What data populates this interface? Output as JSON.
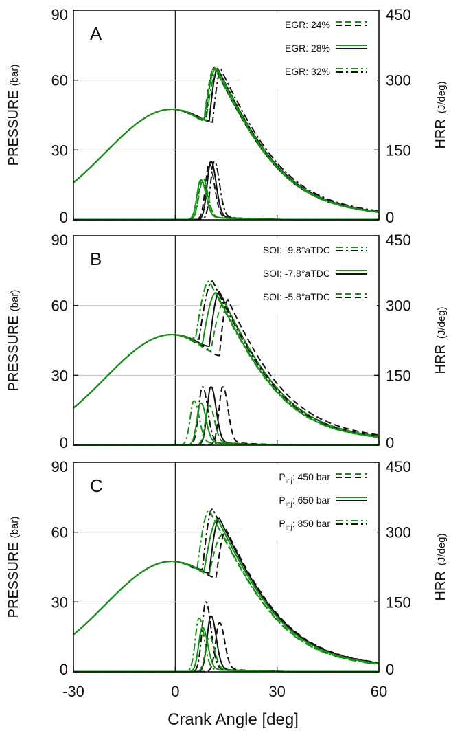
{
  "colors": {
    "green": "#159015",
    "black": "#111111",
    "grid": "#c8c8c8",
    "frame": "#111111"
  },
  "chart_data": [
    {
      "type": "line",
      "panel_label": "A",
      "xlim": [
        -30,
        60
      ],
      "ylim_left": [
        0,
        90
      ],
      "ylim_right": [
        0,
        450
      ],
      "x_ticks": [
        "-30",
        "0",
        "30",
        "60"
      ],
      "y_ticks_left": [
        "0",
        "30",
        "60",
        "90"
      ],
      "y_ticks_right": [
        "0",
        "150",
        "300",
        "450"
      ],
      "ylabel_left": "PRESSURE (bar)",
      "ylabel_right": "HRR (J/deg)",
      "grid": true,
      "legend_position": "top-right",
      "legend": [
        {
          "label": "EGR: 24%",
          "style": "dashed"
        },
        {
          "label": "EGR: 28%",
          "style": "solid"
        },
        {
          "label": "EGR: 32%",
          "style": "dashdot"
        }
      ],
      "series": [
        {
          "name": "EGR: 24%",
          "color": "green",
          "style": "dashed",
          "pressure_peak": {
            "x": 11.5,
            "y": 65.5
          },
          "pressure_dip": {
            "x": 8.5,
            "y": 43.5
          },
          "hrr_peak": {
            "x": 8.0,
            "y": 90
          }
        },
        {
          "name": "EGR: 24%",
          "color": "black",
          "style": "dashed",
          "pressure_peak": {
            "x": 11.5,
            "y": 65.5
          },
          "pressure_dip": {
            "x": 9.0,
            "y": 43.0
          },
          "hrr_peak": {
            "x": 10.0,
            "y": 120
          }
        },
        {
          "name": "EGR: 28%",
          "color": "green",
          "style": "solid",
          "pressure_peak": {
            "x": 12.0,
            "y": 65.0
          },
          "pressure_dip": {
            "x": 8.5,
            "y": 43.0
          },
          "hrr_peak": {
            "x": 7.5,
            "y": 85
          }
        },
        {
          "name": "EGR: 28%",
          "color": "black",
          "style": "solid",
          "pressure_peak": {
            "x": 12.5,
            "y": 65.0
          },
          "pressure_dip": {
            "x": 10.0,
            "y": 42.5
          },
          "hrr_peak": {
            "x": 10.5,
            "y": 125
          }
        },
        {
          "name": "EGR: 32%",
          "color": "green",
          "style": "dashdot",
          "pressure_peak": {
            "x": 12.5,
            "y": 64.5
          },
          "pressure_dip": {
            "x": 9.0,
            "y": 42.5
          },
          "hrr_peak": {
            "x": 8.0,
            "y": 80
          }
        },
        {
          "name": "EGR: 32%",
          "color": "black",
          "style": "dashdot",
          "pressure_peak": {
            "x": 13.5,
            "y": 64.5
          },
          "pressure_dip": {
            "x": 11.0,
            "y": 42.0
          },
          "hrr_peak": {
            "x": 11.5,
            "y": 125
          }
        }
      ],
      "motored_curve": {
        "start": {
          "x": -30,
          "y": 16
        },
        "peak": {
          "x": -1,
          "y": 47.5
        }
      }
    },
    {
      "type": "line",
      "panel_label": "B",
      "xlim": [
        -30,
        60
      ],
      "ylim_left": [
        0,
        90
      ],
      "ylim_right": [
        0,
        450
      ],
      "x_ticks": [
        "-30",
        "0",
        "30",
        "60"
      ],
      "y_ticks_left": [
        "0",
        "30",
        "60",
        "90"
      ],
      "y_ticks_right": [
        "0",
        "150",
        "300",
        "450"
      ],
      "ylabel_left": "PRESSURE (bar)",
      "ylabel_right": "HRR (J/deg)",
      "grid": true,
      "legend_position": "top-right",
      "legend": [
        {
          "label": "SOI: -9.8°aTDC",
          "style": "dashdot"
        },
        {
          "label": "SOI: -7.8°aTDC",
          "style": "solid"
        },
        {
          "label": "SOI: -5.8°aTDC",
          "style": "dashed"
        }
      ],
      "series": [
        {
          "name": "SOI: -9.8°aTDC",
          "color": "green",
          "style": "dashdot",
          "pressure_peak": {
            "x": 10.0,
            "y": 70.5
          },
          "pressure_dip": {
            "x": 6.0,
            "y": 46.0
          },
          "hrr_peak": {
            "x": 5.5,
            "y": 95
          }
        },
        {
          "name": "SOI: -9.8°aTDC",
          "color": "black",
          "style": "dashdot",
          "pressure_peak": {
            "x": 11.0,
            "y": 70.5
          },
          "pressure_dip": {
            "x": 7.0,
            "y": 45.5
          },
          "hrr_peak": {
            "x": 8.0,
            "y": 125
          }
        },
        {
          "name": "SOI: -7.8°aTDC",
          "color": "green",
          "style": "solid",
          "pressure_peak": {
            "x": 12.0,
            "y": 65.5
          },
          "pressure_dip": {
            "x": 8.0,
            "y": 43.5
          },
          "hrr_peak": {
            "x": 7.5,
            "y": 90
          }
        },
        {
          "name": "SOI: -7.8°aTDC",
          "color": "black",
          "style": "solid",
          "pressure_peak": {
            "x": 13.0,
            "y": 66.0
          },
          "pressure_dip": {
            "x": 10.0,
            "y": 42.5
          },
          "hrr_peak": {
            "x": 10.5,
            "y": 125
          }
        },
        {
          "name": "SOI: -5.8°aTDC",
          "color": "green",
          "style": "dashed",
          "pressure_peak": {
            "x": 14.5,
            "y": 61.5
          },
          "pressure_dip": {
            "x": 10.5,
            "y": 40.5
          },
          "hrr_peak": {
            "x": 10.0,
            "y": 85
          }
        },
        {
          "name": "SOI: -5.8°aTDC",
          "color": "black",
          "style": "dashed",
          "pressure_peak": {
            "x": 15.5,
            "y": 62.5
          },
          "pressure_dip": {
            "x": 13.0,
            "y": 38.5
          },
          "hrr_peak": {
            "x": 14.0,
            "y": 125
          }
        }
      ],
      "motored_curve": {
        "start": {
          "x": -30,
          "y": 16
        },
        "peak": {
          "x": -1,
          "y": 47.5
        }
      }
    },
    {
      "type": "line",
      "panel_label": "C",
      "xlim": [
        -30,
        60
      ],
      "ylim_left": [
        0,
        90
      ],
      "ylim_right": [
        0,
        450
      ],
      "x_ticks": [
        "-30",
        "0",
        "30",
        "60"
      ],
      "y_ticks_left": [
        "0",
        "30",
        "60",
        "90"
      ],
      "y_ticks_right": [
        "0",
        "150",
        "300",
        "450"
      ],
      "ylabel_left": "PRESSURE (bar)",
      "ylabel_right": "HRR (J/deg)",
      "xlabel": "Crank Angle [deg]",
      "grid": true,
      "legend_position": "top-right",
      "legend": [
        {
          "label_main": "P",
          "label_sub": "inj",
          "label_rest": ": 450 bar",
          "style": "dashed"
        },
        {
          "label_main": "P",
          "label_sub": "inj",
          "label_rest": ": 650 bar",
          "style": "solid"
        },
        {
          "label_main": "P",
          "label_sub": "inj",
          "label_rest": ": 850 bar",
          "style": "dashdot"
        }
      ],
      "series": [
        {
          "name": "450 bar",
          "color": "green",
          "style": "dashed",
          "pressure_peak": {
            "x": 14.0,
            "y": 59.0
          },
          "pressure_dip": {
            "x": 10.0,
            "y": 42.0
          },
          "hrr_peak": {
            "x": 10.0,
            "y": 75
          }
        },
        {
          "name": "450 bar",
          "color": "black",
          "style": "dashed",
          "pressure_peak": {
            "x": 15.0,
            "y": 61.0
          },
          "pressure_dip": {
            "x": 12.0,
            "y": 40.5
          },
          "hrr_peak": {
            "x": 13.0,
            "y": 105
          }
        },
        {
          "name": "650 bar",
          "color": "green",
          "style": "solid",
          "pressure_peak": {
            "x": 12.5,
            "y": 65.5
          },
          "pressure_dip": {
            "x": 8.5,
            "y": 43.5
          },
          "hrr_peak": {
            "x": 8.0,
            "y": 95
          }
        },
        {
          "name": "650 bar",
          "color": "black",
          "style": "solid",
          "pressure_peak": {
            "x": 13.0,
            "y": 66.0
          },
          "pressure_dip": {
            "x": 10.0,
            "y": 42.5
          },
          "hrr_peak": {
            "x": 10.5,
            "y": 120
          }
        },
        {
          "name": "850 bar",
          "color": "green",
          "style": "dashdot",
          "pressure_peak": {
            "x": 10.0,
            "y": 69.5
          },
          "pressure_dip": {
            "x": 6.5,
            "y": 45.0
          },
          "hrr_peak": {
            "x": 7.0,
            "y": 115
          }
        },
        {
          "name": "850 bar",
          "color": "black",
          "style": "dashdot",
          "pressure_peak": {
            "x": 11.0,
            "y": 70.0
          },
          "pressure_dip": {
            "x": 8.0,
            "y": 44.0
          },
          "hrr_peak": {
            "x": 9.0,
            "y": 150
          }
        }
      ],
      "motored_curve": {
        "start": {
          "x": -30,
          "y": 16
        },
        "peak": {
          "x": -1,
          "y": 47.5
        }
      }
    }
  ]
}
